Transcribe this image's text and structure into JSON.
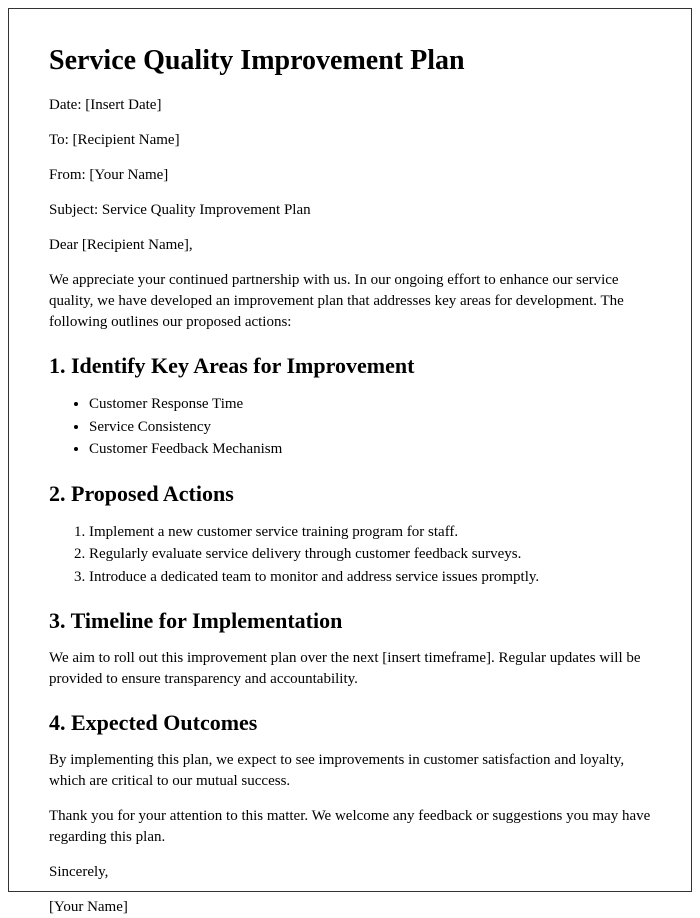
{
  "title": "Service Quality Improvement Plan",
  "meta": {
    "date": "Date: [Insert Date]",
    "to": "To: [Recipient Name]",
    "from": "From: [Your Name]",
    "subject": "Subject: Service Quality Improvement Plan"
  },
  "salutation": "Dear [Recipient Name],",
  "intro": "We appreciate your continued partnership with us. In our ongoing effort to enhance our service quality, we have developed an improvement plan that addresses key areas for development. The following outlines our proposed actions:",
  "section1": {
    "heading": "1. Identify Key Areas for Improvement",
    "items": [
      "Customer Response Time",
      "Service Consistency",
      "Customer Feedback Mechanism"
    ]
  },
  "section2": {
    "heading": "2. Proposed Actions",
    "items": [
      "Implement a new customer service training program for staff.",
      "Regularly evaluate service delivery through customer feedback surveys.",
      "Introduce a dedicated team to monitor and address service issues promptly."
    ]
  },
  "section3": {
    "heading": "3. Timeline for Implementation",
    "body": "We aim to roll out this improvement plan over the next [insert timeframe]. Regular updates will be provided to ensure transparency and accountability."
  },
  "section4": {
    "heading": "4. Expected Outcomes",
    "body": "By implementing this plan, we expect to see improvements in customer satisfaction and loyalty, which are critical to our mutual success."
  },
  "closing": {
    "thanks": "Thank you for your attention to this matter. We welcome any feedback or suggestions you may have regarding this plan.",
    "signoff": "Sincerely,",
    "name": "[Your Name]"
  }
}
